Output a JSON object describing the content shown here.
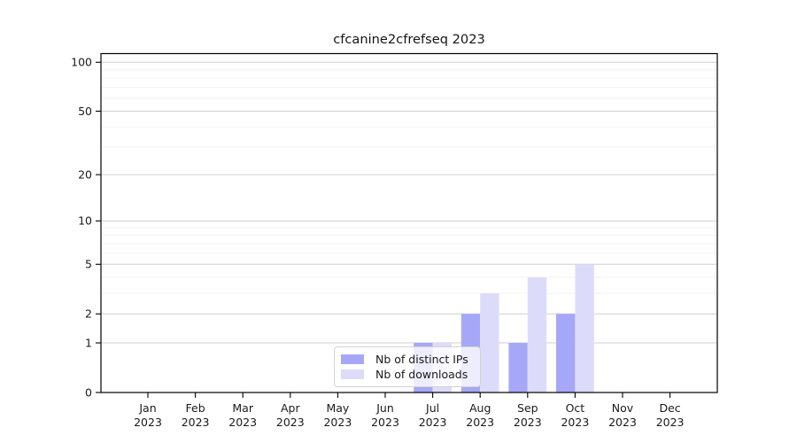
{
  "chart_data": {
    "type": "bar",
    "title": "cfcanine2cfrefseq 2023",
    "categories": [
      "Jan 2023",
      "Feb 2023",
      "Mar 2023",
      "Apr 2023",
      "May 2023",
      "Jun 2023",
      "Jul 2023",
      "Aug 2023",
      "Sep 2023",
      "Oct 2023",
      "Nov 2023",
      "Dec 2023"
    ],
    "x_tick_line1": [
      "Jan",
      "Feb",
      "Mar",
      "Apr",
      "May",
      "Jun",
      "Jul",
      "Aug",
      "Sep",
      "Oct",
      "Nov",
      "Dec"
    ],
    "x_tick_line2": "2023",
    "series": [
      {
        "name": "Nb of distinct IPs",
        "color": "#a7a7f8",
        "values": [
          0,
          0,
          0,
          0,
          0,
          0,
          1,
          2,
          1,
          2,
          0,
          0
        ]
      },
      {
        "name": "Nb of downloads",
        "color": "#dcdcfa",
        "values": [
          0,
          0,
          0,
          0,
          0,
          0,
          1,
          3,
          4,
          5,
          0,
          0
        ]
      }
    ],
    "xlabel": "",
    "ylabel": "",
    "yscale": "log1p",
    "ylim": [
      0,
      113
    ],
    "y_major_ticks": [
      0,
      1,
      2,
      5,
      10,
      20,
      50,
      100
    ],
    "y_minor_ticks": [
      3,
      4,
      6,
      7,
      8,
      9,
      30,
      40,
      60,
      70,
      80,
      90
    ],
    "grid": "horizontal",
    "legend_position": "lower-center-inside"
  },
  "style": {
    "background": "#ffffff",
    "axis_color": "#000000",
    "text_color": "#1a1a1a",
    "grid_major_color": "#cfcfcf",
    "grid_minor_color": "#f2f2f2",
    "legend_border_color": "#d2d2d2"
  }
}
